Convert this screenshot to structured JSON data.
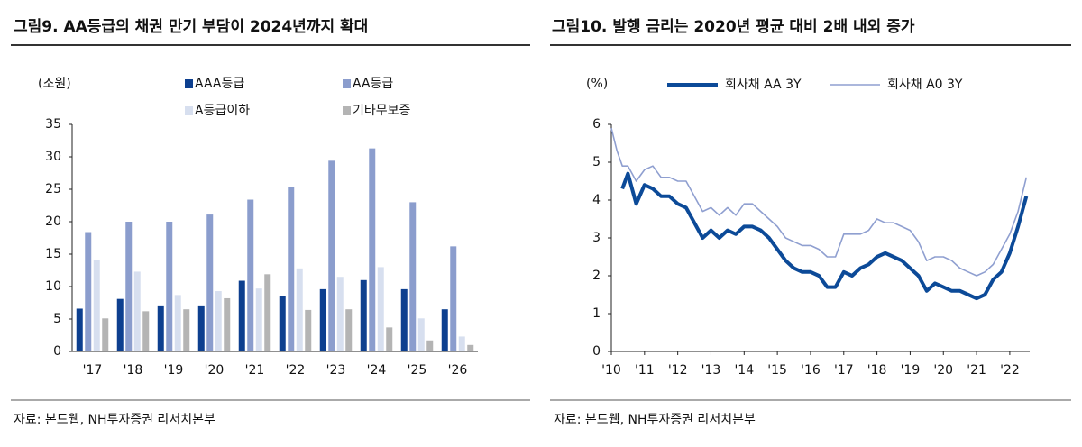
{
  "chart_data": [
    {
      "type": "bar",
      "title": "그림9. AA등급의 채권 만기 부담이 2024년까지 확대",
      "y_label": "(조원)",
      "categories": [
        "'17",
        "'18",
        "'19",
        "'20",
        "'21",
        "'22",
        "'23",
        "'24",
        "'25",
        "'26"
      ],
      "series": [
        {
          "name": "AAA등급",
          "color": "#0d3f8f",
          "values": [
            6.6,
            8.1,
            7.1,
            7.1,
            10.9,
            8.6,
            9.6,
            11.0,
            9.6,
            6.5
          ]
        },
        {
          "name": "AA등급",
          "color": "#8b9dcd",
          "values": [
            18.4,
            20.0,
            20.0,
            21.1,
            23.4,
            25.3,
            29.4,
            31.3,
            23.0,
            16.2
          ]
        },
        {
          "name": "A등급이하",
          "color": "#d7dfef",
          "values": [
            14.1,
            12.3,
            8.7,
            9.3,
            9.7,
            12.8,
            11.5,
            13.0,
            5.1,
            2.3
          ]
        },
        {
          "name": "기타무보증",
          "color": "#b4b4b4",
          "values": [
            5.1,
            6.2,
            6.5,
            8.2,
            11.9,
            6.4,
            6.5,
            3.7,
            1.7,
            1.0
          ]
        }
      ],
      "ylim": [
        0,
        35
      ],
      "yticks": [
        0,
        5,
        10,
        15,
        20,
        25,
        30,
        35
      ],
      "grid": false,
      "source": "자료: 본드웹, NH투자증권 리서치본부"
    },
    {
      "type": "line",
      "title": "그림10. 발행 금리는 2020년 평균 대비 2배 내외 증가",
      "y_label": "(%)",
      "x": [
        2010,
        2010.17,
        2010.33,
        2010.5,
        2010.75,
        2011,
        2011.25,
        2011.5,
        2011.75,
        2012,
        2012.25,
        2012.5,
        2012.75,
        2013,
        2013.25,
        2013.5,
        2013.75,
        2014,
        2014.25,
        2014.5,
        2014.75,
        2015,
        2015.25,
        2015.5,
        2015.75,
        2016,
        2016.25,
        2016.5,
        2016.75,
        2017,
        2017.25,
        2017.5,
        2017.75,
        2018,
        2018.25,
        2018.5,
        2018.75,
        2019,
        2019.25,
        2019.5,
        2019.75,
        2020,
        2020.25,
        2020.5,
        2020.75,
        2021,
        2021.25,
        2021.5,
        2021.75,
        2022,
        2022.25,
        2022.5
      ],
      "series": [
        {
          "name": "회사채 AA 3Y",
          "color": "#0c4a98",
          "values": [
            null,
            null,
            4.3,
            4.7,
            3.9,
            4.4,
            4.3,
            4.1,
            4.1,
            3.9,
            3.8,
            3.4,
            3.0,
            3.2,
            3.0,
            3.2,
            3.1,
            3.3,
            3.3,
            3.2,
            3.0,
            2.7,
            2.4,
            2.2,
            2.1,
            2.1,
            2.0,
            1.7,
            1.7,
            2.1,
            2.0,
            2.2,
            2.3,
            2.5,
            2.6,
            2.5,
            2.4,
            2.2,
            2.0,
            1.6,
            1.8,
            1.7,
            1.6,
            1.6,
            1.5,
            1.4,
            1.5,
            1.9,
            2.1,
            2.6,
            3.3,
            4.1
          ]
        },
        {
          "name": "회사채 A0 3Y",
          "color": "#8f9fd0",
          "values": [
            5.9,
            5.3,
            4.9,
            4.9,
            4.5,
            4.8,
            4.9,
            4.6,
            4.6,
            4.5,
            4.5,
            4.1,
            3.7,
            3.8,
            3.6,
            3.8,
            3.6,
            3.9,
            3.9,
            3.7,
            3.5,
            3.3,
            3.0,
            2.9,
            2.8,
            2.8,
            2.7,
            2.5,
            2.5,
            3.1,
            3.1,
            3.1,
            3.2,
            3.5,
            3.4,
            3.4,
            3.3,
            3.2,
            2.9,
            2.4,
            2.5,
            2.5,
            2.4,
            2.2,
            2.1,
            2.0,
            2.1,
            2.3,
            2.7,
            3.1,
            3.7,
            4.6
          ]
        }
      ],
      "xlim": [
        2010,
        2022.6
      ],
      "xticks": [
        {
          "value": 2010,
          "label": "'10"
        },
        {
          "value": 2011,
          "label": "'11"
        },
        {
          "value": 2012,
          "label": "'12"
        },
        {
          "value": 2013,
          "label": "'13"
        },
        {
          "value": 2014,
          "label": "'14"
        },
        {
          "value": 2015,
          "label": "'15"
        },
        {
          "value": 2016,
          "label": "'16"
        },
        {
          "value": 2017,
          "label": "'17"
        },
        {
          "value": 2018,
          "label": "'18"
        },
        {
          "value": 2019,
          "label": "'19"
        },
        {
          "value": 2020,
          "label": "'20"
        },
        {
          "value": 2021,
          "label": "'21"
        },
        {
          "value": 2022,
          "label": "'22"
        }
      ],
      "ylim": [
        0,
        6
      ],
      "yticks": [
        0,
        1,
        2,
        3,
        4,
        5,
        6
      ],
      "grid": false,
      "source": "자료: 본드웹, NH투자증권 리서치본부"
    }
  ]
}
